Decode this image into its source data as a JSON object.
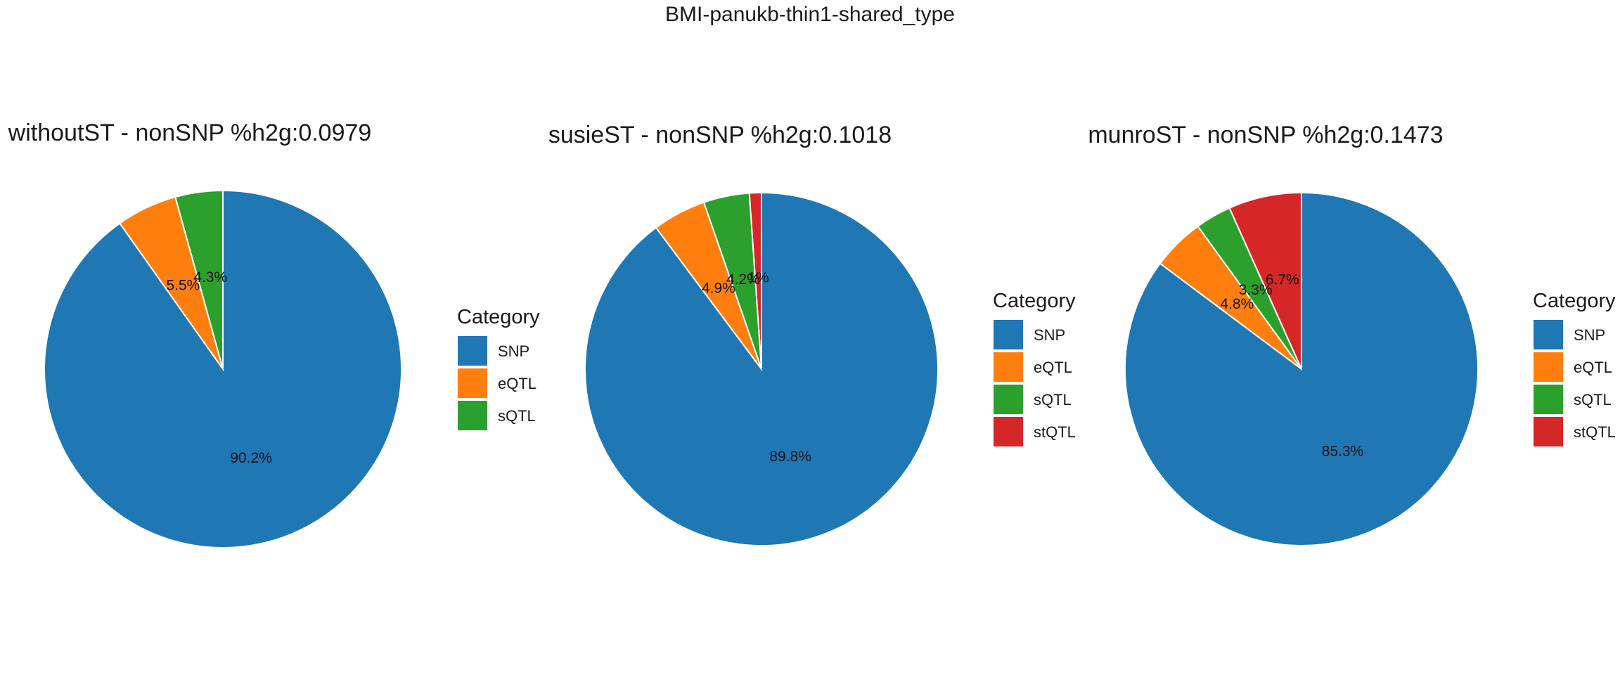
{
  "title": "BMI-panukb-thin1-shared_type",
  "legend_title": "Category",
  "colors": {
    "SNP": "#1f77b4",
    "eQTL": "#ff7f0e",
    "sQTL": "#2ca02c",
    "stQTL": "#d62728"
  },
  "chart_data": [
    {
      "type": "pie",
      "title": "withoutST - nonSNP %h2g:0.0979",
      "legend_title": "Category",
      "legend_position": "right",
      "slices": [
        {
          "category": "sQTL",
          "value": 4.3,
          "label": "4.3%"
        },
        {
          "category": "eQTL",
          "value": 5.5,
          "label": "5.5%"
        },
        {
          "category": "SNP",
          "value": 90.2,
          "label": "90.2%"
        }
      ],
      "legend": [
        "SNP",
        "eQTL",
        "sQTL"
      ]
    },
    {
      "type": "pie",
      "title": "susieST - nonSNP %h2g:0.1018",
      "legend_title": "Category",
      "legend_position": "right",
      "slices": [
        {
          "category": "stQTL",
          "value": 1.1,
          "label": "1%"
        },
        {
          "category": "sQTL",
          "value": 4.2,
          "label": "4.2%"
        },
        {
          "category": "eQTL",
          "value": 4.9,
          "label": "4.9%"
        },
        {
          "category": "SNP",
          "value": 89.8,
          "label": "89.8%"
        }
      ],
      "legend": [
        "SNP",
        "eQTL",
        "sQTL",
        "stQTL"
      ]
    },
    {
      "type": "pie",
      "title": "munroST - nonSNP %h2g:0.1473",
      "legend_title": "Category",
      "legend_position": "right",
      "slices": [
        {
          "category": "stQTL",
          "value": 6.7,
          "label": "6.7%"
        },
        {
          "category": "sQTL",
          "value": 3.3,
          "label": "3.3%"
        },
        {
          "category": "eQTL",
          "value": 4.8,
          "label": "4.8%"
        },
        {
          "category": "SNP",
          "value": 85.3,
          "label": "85.3%"
        }
      ],
      "legend": [
        "SNP",
        "eQTL",
        "sQTL",
        "stQTL"
      ]
    }
  ]
}
